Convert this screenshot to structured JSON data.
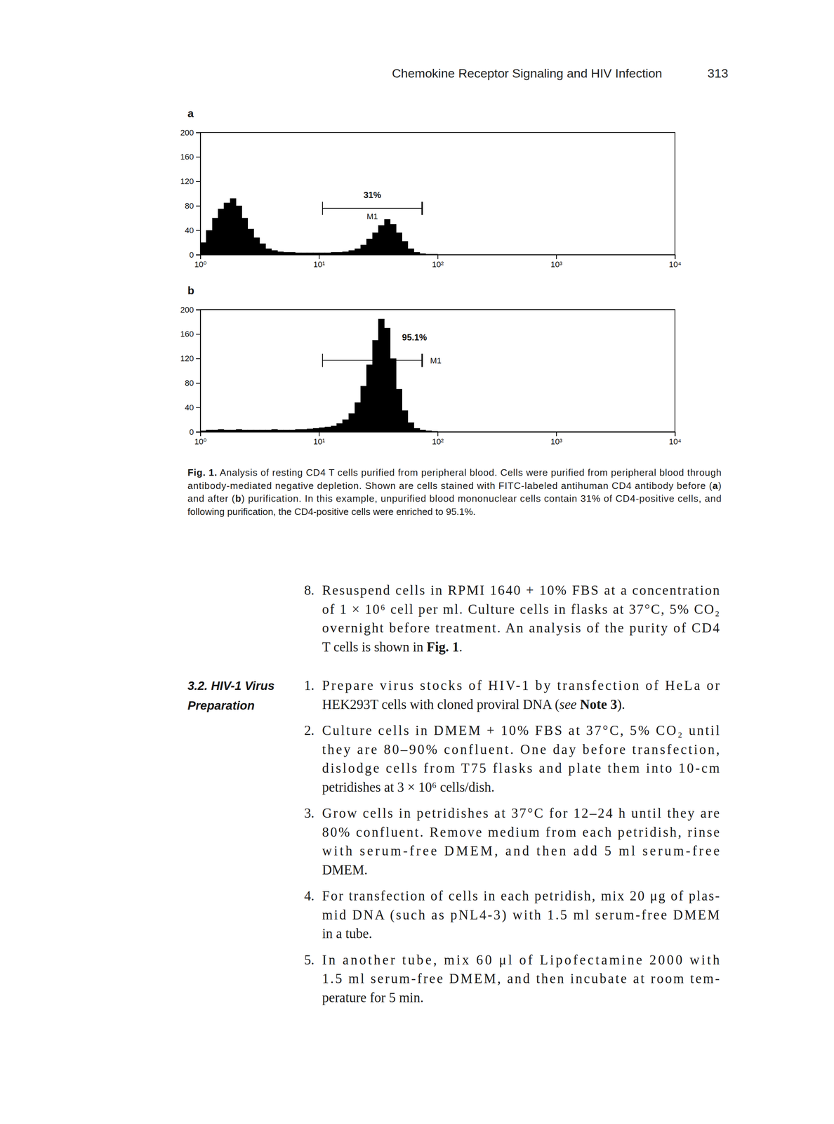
{
  "header": {
    "title": "Chemokine Receptor Signaling and HIV Infection",
    "page": "313"
  },
  "chart_data": [
    {
      "type": "histogram",
      "panel_label": "a",
      "bins": [
        1,
        1.12,
        1.26,
        1.41,
        1.58,
        1.78,
        2,
        2.24,
        2.51,
        2.82,
        3.16,
        3.55,
        3.98,
        4.47,
        5.01,
        5.62,
        6.31,
        7.08,
        7.94,
        8.91,
        10,
        11.2,
        12.6,
        14.1,
        15.8,
        17.8,
        20,
        22.4,
        25.1,
        28.2,
        31.6,
        35.5,
        39.8,
        44.7,
        50.1,
        56.2,
        63.1,
        70.8,
        79.4,
        89.1,
        100,
        112,
        126,
        141,
        158,
        178,
        200,
        224,
        251,
        282,
        316
      ],
      "counts": [
        20,
        40,
        60,
        75,
        85,
        92,
        80,
        60,
        42,
        28,
        18,
        10,
        7,
        5,
        4,
        4,
        3,
        3,
        3,
        3,
        3,
        3,
        4,
        4,
        5,
        7,
        10,
        16,
        26,
        36,
        48,
        58,
        50,
        36,
        22,
        10,
        4,
        2,
        1,
        1,
        0,
        0,
        0,
        0,
        0,
        0,
        0,
        0,
        0,
        0
      ],
      "color": "#000000",
      "log": "x",
      "xlim": [
        1,
        10000
      ],
      "xticks": [
        {
          "value": 1,
          "label": "10⁰"
        },
        {
          "value": 10,
          "label": "10¹"
        },
        {
          "value": 100,
          "label": "10²"
        },
        {
          "value": 1000,
          "label": "10³"
        },
        {
          "value": 10000,
          "label": "10⁴"
        }
      ],
      "ylim": [
        0,
        200
      ],
      "yticks": [
        0,
        40,
        80,
        120,
        160,
        200
      ],
      "gate": {
        "name": "M1",
        "label": "31%",
        "xlim": [
          10.7,
          74
        ],
        "y": 76
      }
    },
    {
      "type": "histogram",
      "panel_label": "b",
      "bins": [
        1,
        1.12,
        1.26,
        1.41,
        1.58,
        1.78,
        2,
        2.24,
        2.51,
        2.82,
        3.16,
        3.55,
        3.98,
        4.47,
        5.01,
        5.62,
        6.31,
        7.08,
        7.94,
        8.91,
        10,
        11.2,
        12.6,
        14.1,
        15.8,
        17.8,
        20,
        22.4,
        25.1,
        28.2,
        31.6,
        35.5,
        39.8,
        44.7,
        50.1,
        56.2,
        63.1,
        70.8,
        79.4,
        89.1,
        100,
        112,
        126,
        141,
        158,
        178,
        200,
        224,
        251,
        282,
        316
      ],
      "counts": [
        2,
        3,
        3,
        4,
        3,
        3,
        4,
        3,
        3,
        3,
        3,
        3,
        4,
        3,
        3,
        3,
        4,
        4,
        5,
        6,
        7,
        8,
        10,
        14,
        20,
        30,
        48,
        75,
        110,
        150,
        185,
        170,
        120,
        70,
        35,
        15,
        6,
        3,
        2,
        1,
        0,
        0,
        0,
        0,
        0,
        0,
        0,
        0,
        0,
        0
      ],
      "color": "#000000",
      "log": "x",
      "xlim": [
        1,
        10000
      ],
      "xticks": [
        {
          "value": 1,
          "label": "10⁰"
        },
        {
          "value": 10,
          "label": "10¹"
        },
        {
          "value": 100,
          "label": "10²"
        },
        {
          "value": 1000,
          "label": "10³"
        },
        {
          "value": 10000,
          "label": "10⁴"
        }
      ],
      "ylim": [
        0,
        200
      ],
      "yticks": [
        0,
        40,
        80,
        120,
        160,
        200
      ],
      "gate": {
        "name": "M1",
        "label": "95.1%",
        "xlim": [
          10.7,
          74
        ],
        "y": 117
      }
    }
  ],
  "caption": {
    "lines": [
      [
        {
          "text": "Fig. 1.",
          "style": "bold"
        },
        {
          "text": " Analysis of resting CD4 T cells purified from peripheral blood. Cells were purified from peripheral blood through"
        }
      ],
      [
        {
          "text": "antibody-mediated negative depletion. Shown are cells stained with FITC-labeled antihuman CD4 antibody before ("
        },
        {
          "text": "a",
          "style": "bold"
        },
        {
          "text": ")"
        }
      ],
      [
        {
          "text": "and after ("
        },
        {
          "text": "b",
          "style": "bold"
        },
        {
          "text": ") purification. In this example, unpurified blood mononuclear cells contain 31% of CD4-positive cells, and"
        }
      ],
      "following purification, the CD4-positive cells were enriched to 95.1%."
    ]
  },
  "procedure": {
    "items": [
      {
        "number": "8.",
        "lines": [
          "Resuspend cells in RPMI 1640 + 10% FBS at a concentration",
          "of 1 × 10⁶ cell per ml. Culture cells in flasks at 37°C, 5% CO₂",
          "overnight before treatment. An analysis of the purity of CD4",
          [
            {
              "text": "T cells is shown in "
            },
            {
              "text": "Fig. 1",
              "style": "bold"
            },
            {
              "text": "."
            }
          ]
        ]
      }
    ]
  },
  "section": {
    "heading": [
      "3.2. HIV-1 Virus",
      "Preparation"
    ],
    "items": [
      {
        "number": "1.",
        "lines": [
          "Prepare virus stocks of HIV-1 by transfection of HeLa or",
          [
            {
              "text": "HEK293T cells with cloned proviral DNA ("
            },
            {
              "text": "see",
              "style": "italic"
            },
            {
              "text": " "
            },
            {
              "text": "Note 3",
              "style": "bold"
            },
            {
              "text": ")."
            }
          ]
        ]
      },
      {
        "number": "2.",
        "lines": [
          "Culture cells in DMEM + 10% FBS at 37°C, 5% CO₂ until",
          "they are 80–90% confluent. One day before transfection,",
          "dislodge cells from T75 flasks and plate them into 10-cm",
          "petridishes at 3 × 10⁶ cells/dish."
        ]
      },
      {
        "number": "3.",
        "lines": [
          "Grow cells in petridishes at 37°C for 12–24 h until they are",
          "80% confluent. Remove medium from each petridish, rinse",
          "with serum-free DMEM, and then add 5 ml serum-free",
          "DMEM."
        ]
      },
      {
        "number": "4.",
        "lines": [
          "For transfection of cells in each petridish, mix 20 μg of plas-",
          "mid DNA (such as pNL4-3) with 1.5 ml serum-free DMEM",
          "in a tube."
        ]
      },
      {
        "number": "5.",
        "lines": [
          "In another tube, mix 60 μl of Lipofectamine 2000 with",
          "1.5 ml serum-free DMEM, and then incubate at room tem-",
          "perature for 5 min."
        ]
      }
    ]
  }
}
